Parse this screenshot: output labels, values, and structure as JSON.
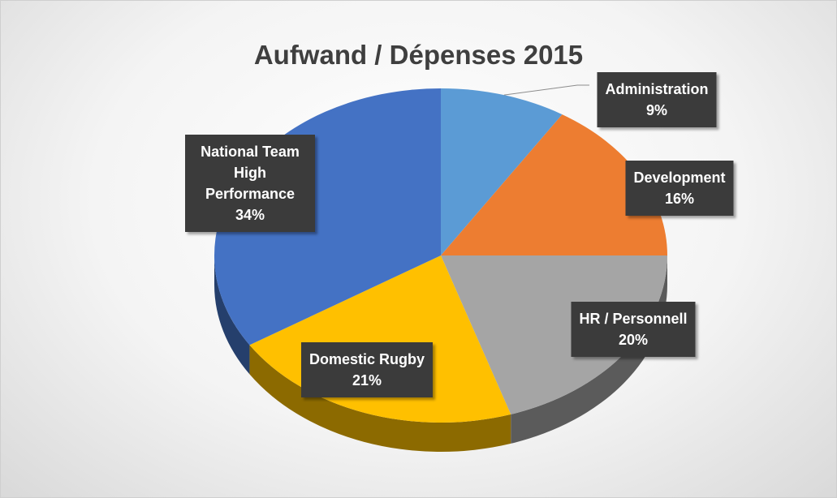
{
  "chart_data": {
    "type": "pie",
    "title": "Aufwand / Dépenses 2015",
    "categories": [
      "Administration",
      "Development",
      "HR / Personnell",
      "Domestic Rugby",
      "National Team High Performance"
    ],
    "values": [
      9,
      16,
      20,
      21,
      34
    ],
    "value_labels": [
      "9%",
      "16%",
      "20%",
      "21%",
      "34%"
    ],
    "colors": [
      "#5b9bd5",
      "#ed7d31",
      "#a5a5a5",
      "#ffc000",
      "#4472c4"
    ]
  }
}
